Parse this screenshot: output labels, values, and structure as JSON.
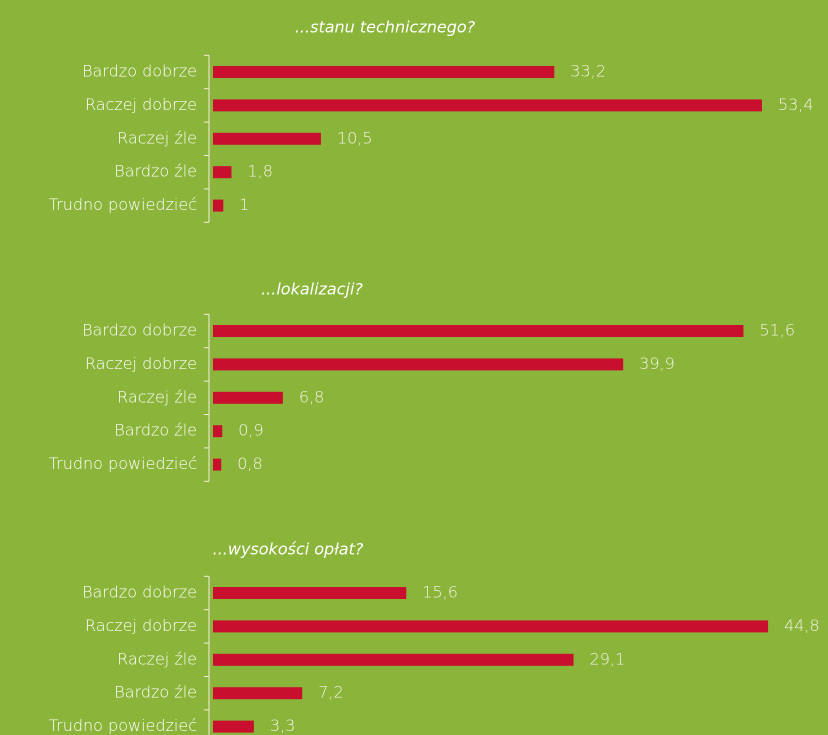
{
  "chart_data": [
    {
      "type": "bar",
      "orientation": "horizontal",
      "title": "...stanu technicznego?",
      "color": "#c8102e",
      "categories": [
        "Bardzo dobrze",
        "Raczej dobrze",
        "Raczej źle",
        "Bardzo źle",
        "Trudno powiedzieć"
      ],
      "values": [
        33.2,
        53.4,
        10.5,
        1.8,
        1
      ],
      "value_labels": [
        "33,2",
        "53,4",
        "10,5",
        "1,8",
        "1"
      ]
    },
    {
      "type": "bar",
      "orientation": "horizontal",
      "title": "...lokalizacji?",
      "color": "#c8102e",
      "categories": [
        "Bardzo dobrze",
        "Raczej dobrze",
        "Raczej źle",
        "Bardzo źle",
        "Trudno powiedzieć"
      ],
      "values": [
        51.6,
        39.9,
        6.8,
        0.9,
        0.8
      ],
      "value_labels": [
        "51,6",
        "39,9",
        "6,8",
        "0,9",
        "0,8"
      ]
    },
    {
      "type": "bar",
      "orientation": "horizontal",
      "title": "...wysokości opłat?",
      "color": "#c8102e",
      "categories": [
        "Bardzo dobrze",
        "Raczej dobrze",
        "Raczej źle",
        "Bardzo źle",
        "Trudno powiedzieć"
      ],
      "values": [
        15.6,
        44.8,
        29.1,
        7.2,
        3.3
      ],
      "value_labels": [
        "15,6",
        "44,8",
        "29,1",
        "7,2",
        "3,3"
      ]
    }
  ]
}
